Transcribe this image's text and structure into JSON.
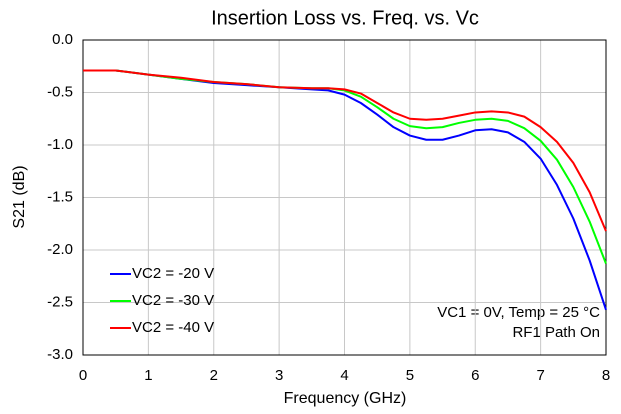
{
  "chart_data": {
    "type": "line",
    "title": "Insertion Loss vs. Freq. vs. Vc",
    "x_label": "Frequency (GHz)",
    "y_label": "S21 (dB)",
    "annotations": [
      "VC1 = 0V, Temp = 25 °C",
      "RF1 Path On"
    ],
    "x": [
      0,
      0.5,
      1,
      1.5,
      2,
      2.5,
      3,
      3.5,
      3.75,
      4,
      4.25,
      4.5,
      4.75,
      5,
      5.25,
      5.5,
      5.75,
      6,
      6.25,
      6.5,
      6.75,
      7,
      7.25,
      7.5,
      7.75,
      8
    ],
    "series": [
      {
        "name": "VC2 = -20 V",
        "color": "#0000ff",
        "values": [
          -0.29,
          -0.29,
          -0.33,
          -0.37,
          -0.41,
          -0.43,
          -0.45,
          -0.47,
          -0.48,
          -0.52,
          -0.6,
          -0.71,
          -0.83,
          -0.91,
          -0.95,
          -0.95,
          -0.91,
          -0.86,
          -0.85,
          -0.88,
          -0.97,
          -1.13,
          -1.38,
          -1.7,
          -2.1,
          -2.57
        ]
      },
      {
        "name": "VC2 = -30 V",
        "color": "#00ff00",
        "values": [
          -0.29,
          -0.29,
          -0.33,
          -0.37,
          -0.4,
          -0.42,
          -0.45,
          -0.46,
          -0.46,
          -0.48,
          -0.54,
          -0.64,
          -0.75,
          -0.82,
          -0.84,
          -0.83,
          -0.79,
          -0.76,
          -0.75,
          -0.77,
          -0.84,
          -0.96,
          -1.14,
          -1.4,
          -1.73,
          -2.13
        ]
      },
      {
        "name": "VC2 = -40 V",
        "color": "#ff0000",
        "values": [
          -0.29,
          -0.29,
          -0.33,
          -0.36,
          -0.4,
          -0.42,
          -0.45,
          -0.46,
          -0.46,
          -0.47,
          -0.51,
          -0.6,
          -0.69,
          -0.75,
          -0.76,
          -0.75,
          -0.72,
          -0.69,
          -0.68,
          -0.69,
          -0.73,
          -0.83,
          -0.97,
          -1.17,
          -1.45,
          -1.82
        ]
      }
    ],
    "xlim": [
      0,
      8
    ],
    "xticks": [
      0,
      1,
      2,
      3,
      4,
      5,
      6,
      7,
      8
    ],
    "ylim": [
      -3,
      0
    ],
    "yticks": [
      {
        "value": 0,
        "label": "0.0"
      },
      -0.5,
      {
        "value": -1,
        "label": "-1.0"
      },
      -1.5,
      {
        "value": -2,
        "label": "-2.0"
      },
      -2.5,
      {
        "value": -3,
        "label": "-3.0"
      }
    ],
    "grid": true,
    "legend": "lower left"
  }
}
